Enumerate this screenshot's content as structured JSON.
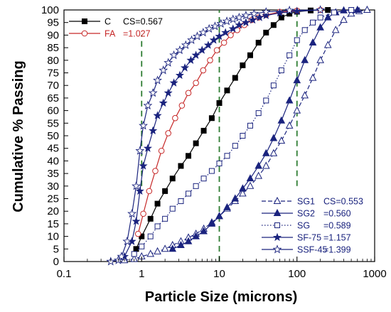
{
  "chart_data": {
    "type": "line",
    "xlabel": "Particle Size (microns)",
    "ylabel": "Cumulative % Passing",
    "x_scale": "log",
    "xlim": [
      0.1,
      1000
    ],
    "ylim": [
      0,
      100
    ],
    "x_tick_labels": [
      "0.1",
      "1",
      "10",
      "100",
      "1000"
    ],
    "y_tick_labels": [
      "0",
      "5",
      "10",
      "15",
      "20",
      "25",
      "30",
      "35",
      "40",
      "45",
      "50",
      "55",
      "60",
      "65",
      "70",
      "75",
      "80",
      "85",
      "90",
      "95",
      "100"
    ],
    "reference_lines": [
      {
        "x": 1,
        "y_range": [
          30,
          90
        ],
        "style": "dashed",
        "color": "#2e7d32"
      },
      {
        "x": 10,
        "y_range": [
          0,
          100
        ],
        "style": "dashed",
        "color": "#2e7d32"
      },
      {
        "x": 100,
        "y_range": [
          30,
          100
        ],
        "style": "dashed",
        "color": "#2e7d32"
      }
    ],
    "legend_top": [
      {
        "label": "C",
        "stat": "CS=0.567"
      },
      {
        "label": "FA",
        "stat": "=1.027"
      }
    ],
    "legend_bottom": [
      {
        "label": "SG1",
        "stat": "CS=0.553"
      },
      {
        "label": "SG2",
        "stat": "=0.560"
      },
      {
        "label": "SG",
        "stat": "=0.589"
      },
      {
        "label": "SF-75",
        "stat": "=1.157"
      },
      {
        "label": "SSF-45",
        "stat": "=1.399"
      }
    ],
    "series": [
      {
        "name": "C",
        "color": "#000000",
        "marker": "square-filled",
        "line": "solid",
        "points": [
          [
            0.85,
            5
          ],
          [
            1.0,
            10
          ],
          [
            1.3,
            17
          ],
          [
            1.6,
            23
          ],
          [
            2.0,
            28
          ],
          [
            2.5,
            33
          ],
          [
            3.2,
            38
          ],
          [
            4.0,
            42
          ],
          [
            5.0,
            47
          ],
          [
            6.3,
            52
          ],
          [
            8.0,
            57
          ],
          [
            10,
            63
          ],
          [
            12.6,
            68
          ],
          [
            16,
            73
          ],
          [
            20,
            78
          ],
          [
            25,
            82
          ],
          [
            32,
            87
          ],
          [
            40,
            91
          ],
          [
            50,
            94
          ],
          [
            63,
            97
          ],
          [
            80,
            98.5
          ],
          [
            100,
            99.3
          ],
          [
            150,
            99.8
          ],
          [
            250,
            100
          ]
        ]
      },
      {
        "name": "FA",
        "color": "#c62828",
        "marker": "circle-open",
        "line": "solid",
        "points": [
          [
            0.9,
            11
          ],
          [
            1.05,
            19
          ],
          [
            1.25,
            28
          ],
          [
            1.5,
            36
          ],
          [
            1.8,
            44
          ],
          [
            2.2,
            51
          ],
          [
            2.7,
            57
          ],
          [
            3.3,
            62
          ],
          [
            4.0,
            67
          ],
          [
            5.0,
            71
          ],
          [
            6.2,
            76
          ],
          [
            7.6,
            80
          ],
          [
            9.3,
            84
          ],
          [
            11.5,
            87
          ],
          [
            14,
            90
          ],
          [
            17,
            92
          ],
          [
            21,
            94
          ],
          [
            26,
            96
          ],
          [
            32,
            97
          ],
          [
            40,
            98
          ],
          [
            60,
            99.2
          ],
          [
            100,
            99.7
          ],
          [
            200,
            100
          ]
        ]
      },
      {
        "name": "SG1",
        "color": "#1a237e",
        "marker": "triangle-open",
        "line": "dashed",
        "points": [
          [
            0.6,
            0.5
          ],
          [
            0.8,
            1
          ],
          [
            1.0,
            2
          ],
          [
            1.3,
            3
          ],
          [
            1.6,
            4
          ],
          [
            2.0,
            5
          ],
          [
            2.5,
            6.5
          ],
          [
            3.2,
            8
          ],
          [
            4.0,
            9.5
          ],
          [
            5.0,
            11
          ],
          [
            6.3,
            13
          ],
          [
            8.0,
            15.5
          ],
          [
            10,
            18
          ],
          [
            12.6,
            21
          ],
          [
            16,
            24
          ],
          [
            20,
            27
          ],
          [
            25,
            30
          ],
          [
            32,
            34
          ],
          [
            40,
            38
          ],
          [
            50,
            43
          ],
          [
            63,
            48
          ],
          [
            80,
            54
          ],
          [
            100,
            60
          ],
          [
            126,
            66
          ],
          [
            160,
            73
          ],
          [
            200,
            80
          ],
          [
            250,
            86
          ],
          [
            315,
            92
          ],
          [
            400,
            96
          ],
          [
            500,
            98.5
          ],
          [
            630,
            99.5
          ],
          [
            800,
            100
          ]
        ]
      },
      {
        "name": "SG2",
        "color": "#1a237e",
        "marker": "triangle-filled",
        "line": "solid",
        "points": [
          [
            2.5,
            5
          ],
          [
            3.2,
            6.5
          ],
          [
            4.0,
            8
          ],
          [
            5.0,
            10
          ],
          [
            6.3,
            12
          ],
          [
            8.0,
            15
          ],
          [
            10,
            18
          ],
          [
            12.6,
            21.5
          ],
          [
            16,
            25
          ],
          [
            20,
            29
          ],
          [
            25,
            33
          ],
          [
            32,
            38
          ],
          [
            40,
            43
          ],
          [
            50,
            49
          ],
          [
            63,
            56
          ],
          [
            80,
            64
          ],
          [
            100,
            72
          ],
          [
            126,
            80
          ],
          [
            160,
            87
          ],
          [
            200,
            93
          ],
          [
            250,
            97
          ],
          [
            315,
            99
          ],
          [
            400,
            99.8
          ],
          [
            600,
            100
          ]
        ]
      },
      {
        "name": "SG",
        "color": "#1a237e",
        "marker": "square-open",
        "line": "dotted",
        "points": [
          [
            0.8,
            3
          ],
          [
            1.0,
            6
          ],
          [
            1.3,
            10
          ],
          [
            1.6,
            14
          ],
          [
            2.0,
            17
          ],
          [
            2.5,
            21
          ],
          [
            3.2,
            24
          ],
          [
            4.0,
            27
          ],
          [
            5.0,
            30
          ],
          [
            6.3,
            33
          ],
          [
            8.0,
            36
          ],
          [
            10,
            39
          ],
          [
            12.6,
            42
          ],
          [
            16,
            46
          ],
          [
            20,
            50
          ],
          [
            25,
            54
          ],
          [
            32,
            59
          ],
          [
            40,
            64
          ],
          [
            50,
            70
          ],
          [
            63,
            76
          ],
          [
            80,
            82
          ],
          [
            100,
            88
          ],
          [
            126,
            92
          ],
          [
            160,
            95
          ],
          [
            200,
            97
          ],
          [
            300,
            99
          ],
          [
            500,
            100
          ]
        ]
      },
      {
        "name": "SF-75",
        "color": "#1a237e",
        "marker": "star-filled",
        "line": "solid",
        "points": [
          [
            0.6,
            2
          ],
          [
            0.75,
            8
          ],
          [
            0.85,
            16
          ],
          [
            0.95,
            28
          ],
          [
            1.05,
            38
          ],
          [
            1.2,
            45
          ],
          [
            1.4,
            52
          ],
          [
            1.6,
            58
          ],
          [
            1.9,
            63
          ],
          [
            2.2,
            67
          ],
          [
            2.6,
            71
          ],
          [
            3.1,
            74
          ],
          [
            3.6,
            77
          ],
          [
            4.3,
            80
          ],
          [
            5.0,
            82
          ],
          [
            6.0,
            84
          ],
          [
            7.2,
            86
          ],
          [
            8.5,
            88
          ],
          [
            10,
            89.5
          ],
          [
            12,
            91
          ],
          [
            15,
            92.5
          ],
          [
            18,
            94
          ],
          [
            22,
            95
          ],
          [
            27,
            96
          ],
          [
            33,
            97
          ],
          [
            40,
            97.8
          ],
          [
            60,
            98.8
          ],
          [
            100,
            99.5
          ],
          [
            200,
            100
          ]
        ]
      },
      {
        "name": "SSF-45",
        "color": "#1a237e",
        "marker": "star-open",
        "line": "solid",
        "points": [
          [
            0.4,
            0
          ],
          [
            0.5,
            0.5
          ],
          [
            0.55,
            2
          ],
          [
            0.65,
            8
          ],
          [
            0.75,
            19
          ],
          [
            0.85,
            30
          ],
          [
            0.95,
            44
          ],
          [
            1.05,
            54
          ],
          [
            1.2,
            62
          ],
          [
            1.4,
            67
          ],
          [
            1.6,
            72
          ],
          [
            1.9,
            76
          ],
          [
            2.2,
            79
          ],
          [
            2.6,
            82
          ],
          [
            3.1,
            84
          ],
          [
            3.7,
            86
          ],
          [
            4.4,
            88
          ],
          [
            5.2,
            89.5
          ],
          [
            6.2,
            91
          ],
          [
            7.4,
            92.5
          ],
          [
            8.8,
            93.5
          ],
          [
            10.5,
            94.5
          ],
          [
            12.5,
            95.5
          ],
          [
            15,
            96.3
          ],
          [
            18,
            97
          ],
          [
            22,
            97.8
          ],
          [
            28,
            98.5
          ],
          [
            40,
            99.2
          ],
          [
            80,
            99.8
          ],
          [
            200,
            100
          ]
        ]
      }
    ]
  }
}
